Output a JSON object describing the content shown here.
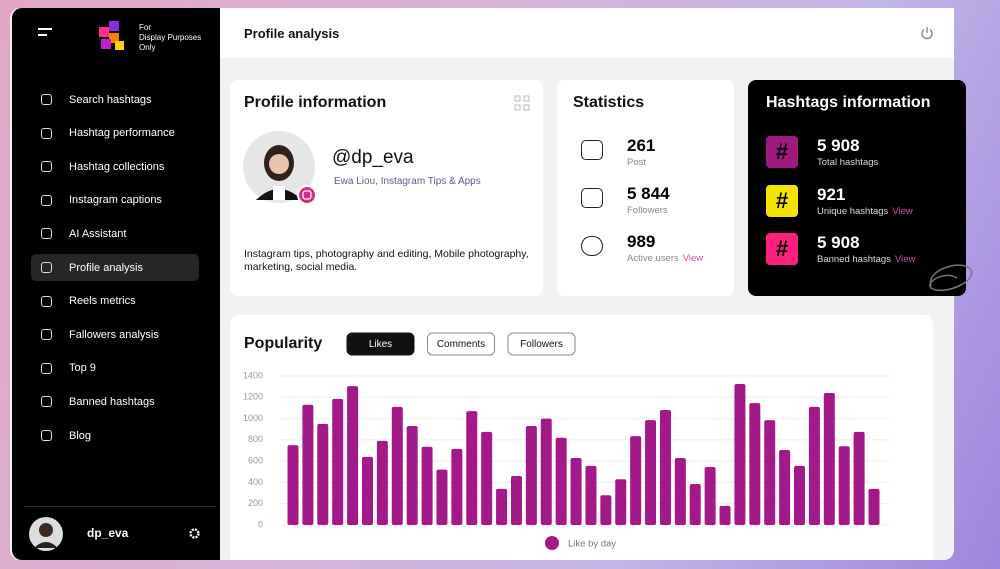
{
  "sidebar": {
    "logo_lines": [
      "For",
      "Display Purposes",
      "Only"
    ],
    "menu": [
      {
        "label": "Search hashtags"
      },
      {
        "label": "Hashtag performance"
      },
      {
        "label": "Hashtag collections"
      },
      {
        "label": "Instagram captions"
      },
      {
        "label": "AI Assistant"
      },
      {
        "label": "Profile analysis",
        "active": true
      },
      {
        "label": "Reels metrics"
      },
      {
        "label": "Fallowers analysis"
      },
      {
        "label": "Top 9"
      },
      {
        "label": "Banned hashtags"
      },
      {
        "label": "Blog"
      }
    ],
    "user": "dp_eva"
  },
  "header": {
    "title": "Profile analysis"
  },
  "profile": {
    "title": "Profile information",
    "handle": "@dp_eva",
    "subtitle": "Ewa Liou, Instagram Tips & Apps",
    "bio": "Instagram tips, photography and editing, Mobile photography, marketing, social media."
  },
  "statistics": {
    "title": "Statistics",
    "items": [
      {
        "value": "261",
        "label": "Post"
      },
      {
        "value": "5 844",
        "label": "Followers"
      },
      {
        "value": "989",
        "label": "Active users",
        "link": "View"
      }
    ]
  },
  "hashtags": {
    "title": "Hashtags information",
    "items": [
      {
        "icon": "#",
        "color": "#a0197f",
        "value": "5 908",
        "label": "Total hashtags"
      },
      {
        "icon": "#",
        "color": "#f5e400",
        "value": "921",
        "label": "Unique hashtags",
        "link": "View"
      },
      {
        "icon": "#",
        "color": "#ff1f7d",
        "value": "5 908",
        "label": "Banned hashtags",
        "link": "View"
      }
    ]
  },
  "chart_data": {
    "type": "bar",
    "title": "Popularity",
    "tabs": [
      {
        "label": "Likes",
        "active": true
      },
      {
        "label": "Comments"
      },
      {
        "label": "Followers"
      }
    ],
    "series": [
      {
        "name": "Like by day",
        "color": "#a3198a",
        "values": [
          750,
          1130,
          950,
          1185,
          1305,
          640,
          790,
          1110,
          930,
          735,
          520,
          715,
          1070,
          875,
          340,
          460,
          930,
          1000,
          820,
          630,
          555,
          280,
          430,
          835,
          985,
          1080,
          630,
          385,
          545,
          180,
          1325,
          1145,
          985,
          705,
          555,
          1110,
          1240,
          740,
          875,
          340
        ]
      }
    ],
    "ylim": [
      0,
      1400
    ],
    "yticks": [
      0,
      200,
      400,
      600,
      800,
      1000,
      1200,
      1400
    ],
    "grid": true
  }
}
